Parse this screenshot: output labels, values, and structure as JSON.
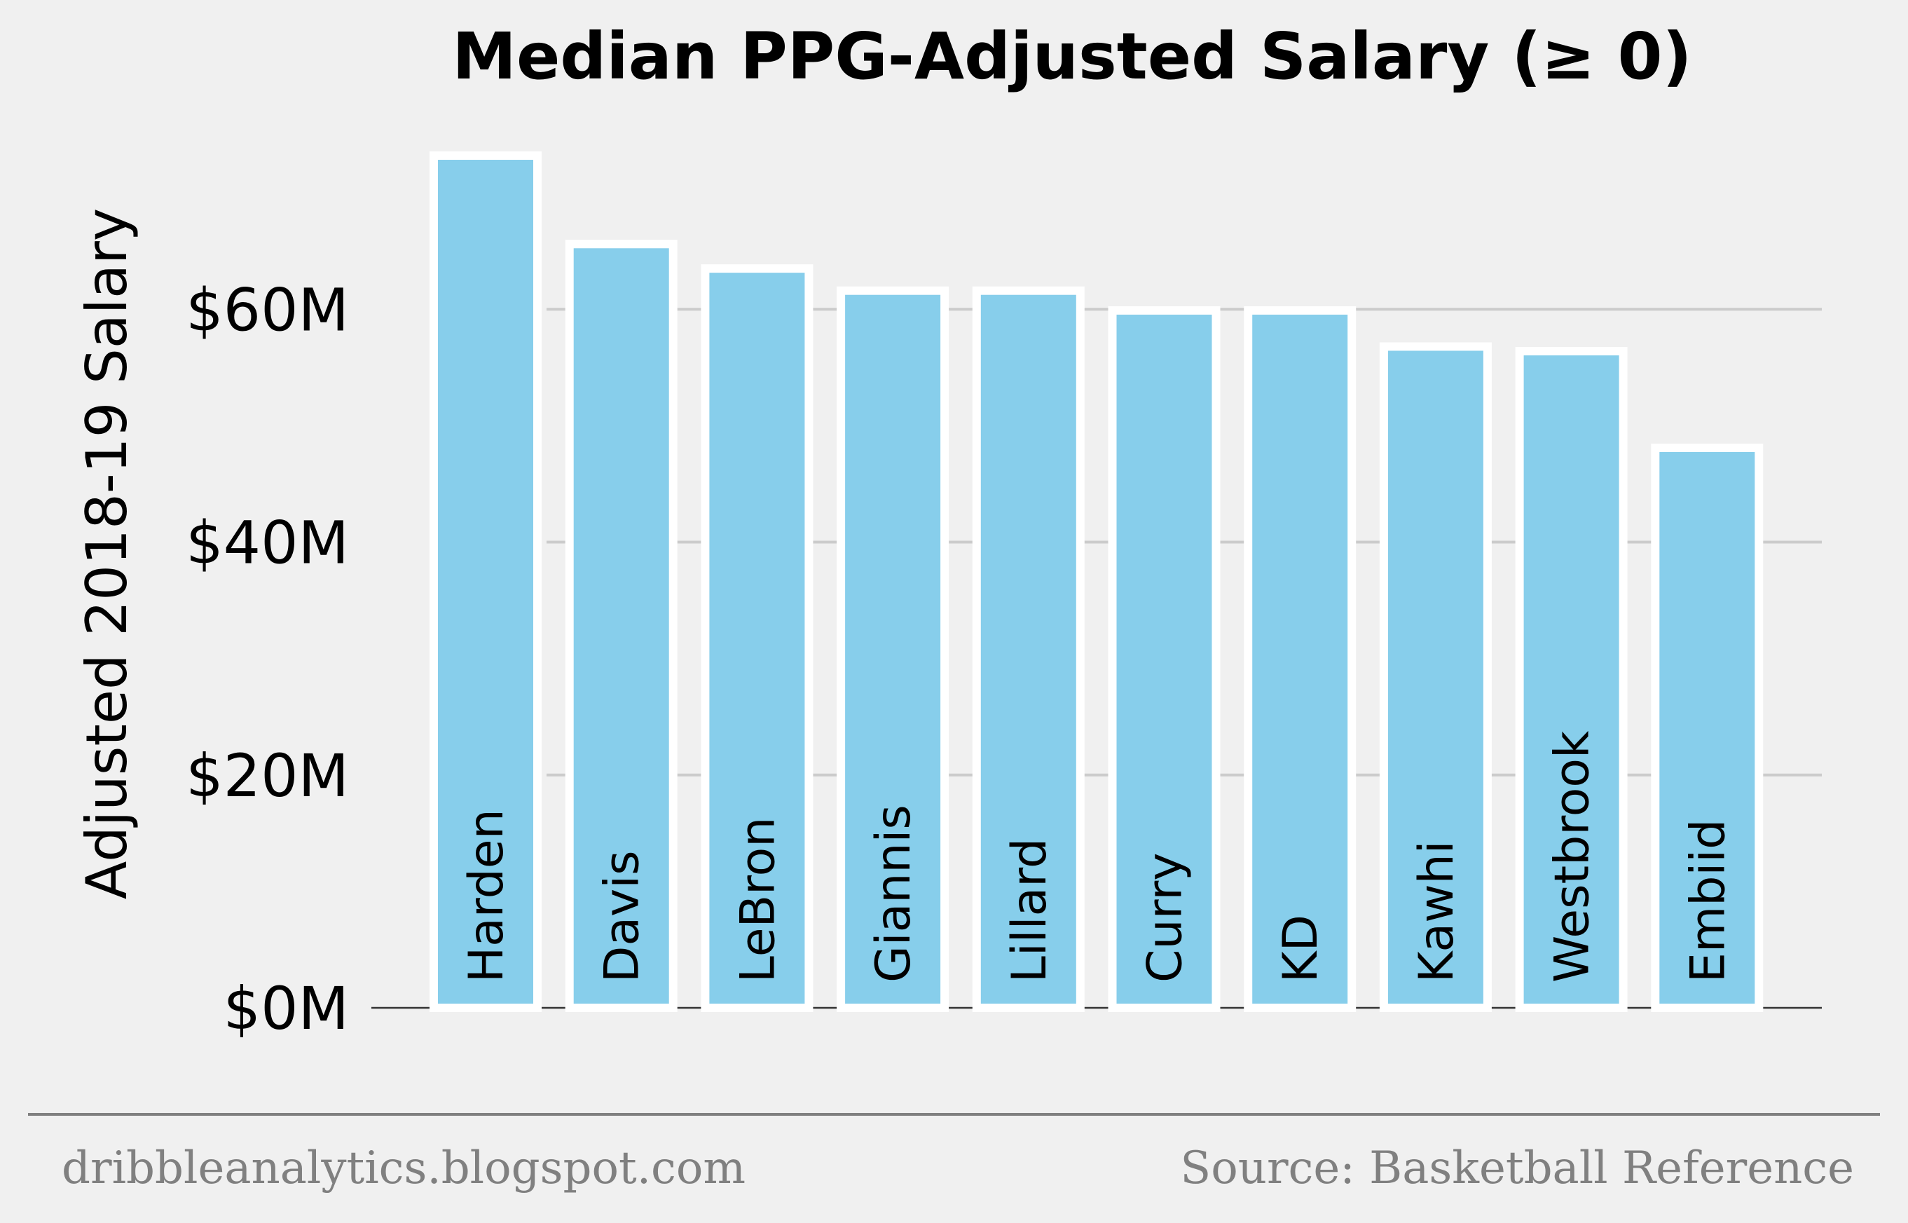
{
  "chart_data": {
    "type": "bar",
    "title": "Median PPG-Adjusted Salary (≥ 0)",
    "ylabel": "Adjusted 2018-19 Salary",
    "xlabel": "",
    "categories": [
      "Harden",
      "Davis",
      "LeBron",
      "Giannis",
      "Lillard",
      "Curry",
      "KD",
      "Kawhi",
      "Westbrook",
      "Embiid"
    ],
    "values": [
      73.2,
      65.6,
      63.5,
      61.6,
      61.6,
      59.9,
      59.9,
      56.8,
      56.4,
      48.1
    ],
    "yticks": [
      {
        "value": 0,
        "label": "$0M"
      },
      {
        "value": 20,
        "label": "$20M"
      },
      {
        "value": 40,
        "label": "$40M"
      },
      {
        "value": 60,
        "label": "$60M"
      }
    ],
    "ylim": [
      0,
      73.2
    ],
    "grid": true,
    "labels_inside_bars": true,
    "colors": {
      "bar": "#87ceeb",
      "bar_edge": "#ffffff",
      "background": "#f0f0f0"
    }
  },
  "footer": {
    "left": "dribbleanalytics.blogspot.com",
    "right": "Source: Basketball Reference"
  }
}
